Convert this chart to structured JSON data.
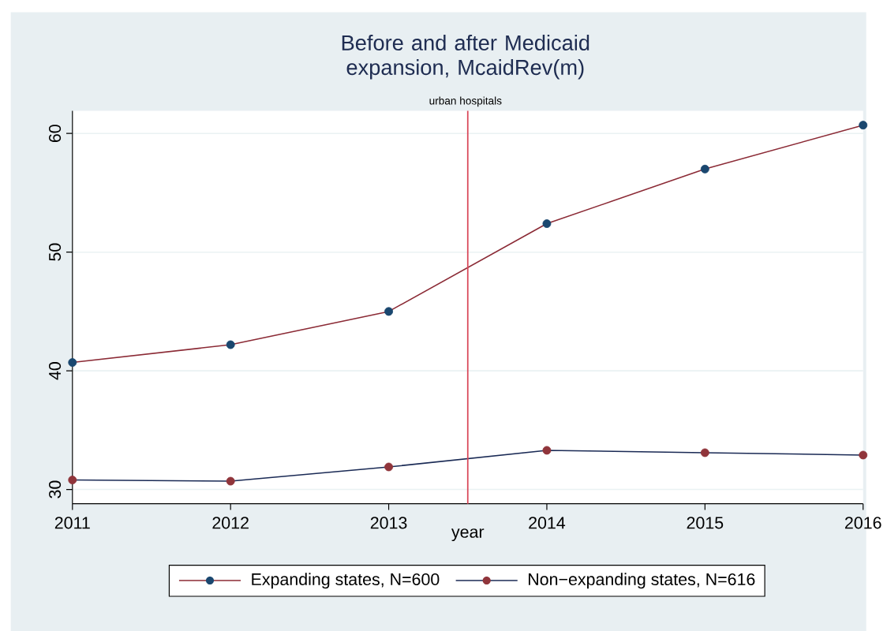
{
  "chart_data": {
    "type": "line",
    "title": "Before and after Medicaid expansion, McaidRev(m)",
    "subtitle": "urban hospitals",
    "xlabel": "year",
    "x": [
      2011,
      2012,
      2013,
      2014,
      2015,
      2016
    ],
    "series": [
      {
        "name": "Expanding states, N=600",
        "color": "#8b2a35",
        "colors": [
          "#1a476f",
          "#1a476f",
          "#1a476f",
          "#1a476f",
          "#1a476f",
          "#1a476f"
        ],
        "values": [
          40.7,
          42.2,
          45.0,
          52.4,
          57.0,
          60.7
        ]
      },
      {
        "name": "Non−expanding states, N=616",
        "color": "#1a2a55",
        "colors": [
          "#90353b",
          "#90353b",
          "#90353b",
          "#90353b",
          "#90353b",
          "#90353b"
        ],
        "values": [
          30.8,
          30.7,
          31.9,
          33.3,
          33.1,
          32.9
        ]
      }
    ],
    "xlim": [
      2011,
      2016
    ],
    "xticks": [
      2011,
      2012,
      2013,
      2014,
      2015,
      2016
    ],
    "ylim": [
      28.8,
      61.9
    ],
    "yticks": [
      30,
      40,
      50,
      60
    ],
    "ref_lines": [
      {
        "axis": "x",
        "value": 2013.5,
        "color": "#d9485a"
      }
    ],
    "grid": "y",
    "legend": "bottom",
    "marker": "circle",
    "line_style": "solid"
  }
}
